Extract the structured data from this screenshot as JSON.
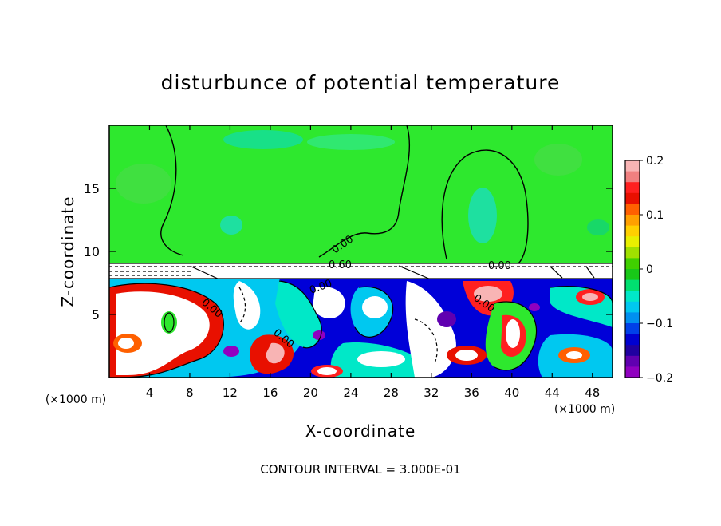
{
  "chart_data": {
    "type": "heatmap",
    "title": "disturbunce of potential temperature",
    "xlabel": "X-coordinate",
    "ylabel": "Z-coordinate",
    "x_unit_left": "(×1000 m)",
    "x_unit_right": "(×1000 m)",
    "xlim": [
      0,
      50
    ],
    "ylim": [
      0,
      20
    ],
    "x_ticks": [
      4,
      8,
      12,
      16,
      20,
      24,
      28,
      32,
      36,
      40,
      44,
      48
    ],
    "y_ticks": [
      5,
      10,
      15
    ],
    "colorbar": {
      "range": [
        -0.2,
        0.2
      ],
      "tick_labels": [
        "0.2",
        "0.1",
        "0",
        "−0.1",
        "−0.2"
      ],
      "tick_values": [
        0.2,
        0.1,
        0,
        -0.1,
        -0.2
      ],
      "colors": [
        "#f8b4b4",
        "#f08080",
        "#ff2020",
        "#e81000",
        "#ff6000",
        "#ffa000",
        "#ffd000",
        "#e8f000",
        "#a0e000",
        "#40d000",
        "#18c818",
        "#00e070",
        "#00e8c8",
        "#00c8f0",
        "#0090f0",
        "#0040e8",
        "#0000d0",
        "#2000a0",
        "#6000b0",
        "#9000c0"
      ]
    },
    "contour_labels": [
      "0.00",
      "0.60",
      "0.00",
      "0.00",
      "0.00",
      "0.00",
      "0.00"
    ],
    "footer": "CONTOUR INTERVAL = 3.000E-01",
    "regions": [
      {
        "name": "upper layer",
        "z_range": [
          9,
          20
        ],
        "value_approx": 0.0
      },
      {
        "name": "white band",
        "z_range": [
          7.8,
          9
        ],
        "value_approx": null
      },
      {
        "name": "lower turbulent layer",
        "z_range": [
          0,
          7.8
        ],
        "value_range": [
          -0.2,
          0.2
        ]
      }
    ]
  }
}
